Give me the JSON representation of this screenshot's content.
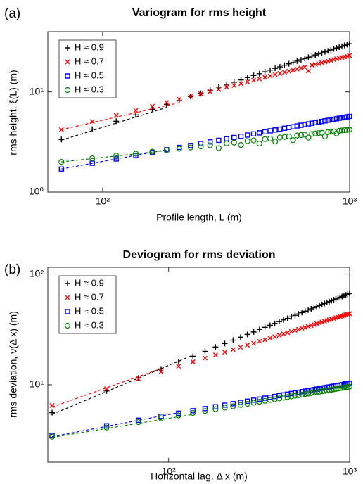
{
  "chart_data": [
    {
      "type": "scatter",
      "label": "(a)",
      "title": "Variogram for rms height",
      "xlabel": "Profile length, L (m)",
      "ylabel": "rms height, ξ(L) (m)",
      "xscale": "log",
      "yscale": "log",
      "xlim": [
        60,
        1000
      ],
      "ylim": [
        1,
        40
      ],
      "xticks": [
        {
          "value": 100,
          "label": "10²"
        },
        {
          "value": 1000,
          "label": "10³"
        }
      ],
      "yticks": [
        {
          "value": 1,
          "label": "10⁰"
        },
        {
          "value": 10,
          "label": "10¹"
        }
      ],
      "legend": "upper left",
      "x": [
        68.1,
        90.8,
        113.5,
        136.2,
        158.9,
        181.6,
        204.3,
        227,
        249.7,
        272.4,
        295.1,
        317.8,
        340.5,
        363.2,
        385.9,
        408.6,
        431.3,
        454,
        476.7,
        499.4,
        522.1,
        544.8,
        567.5,
        590.2,
        612.9,
        635.6,
        658.3,
        681,
        703.7,
        726.4,
        749.1,
        771.8,
        794.5,
        817.2,
        839.9,
        862.6,
        885.3,
        908,
        930.7,
        953.4,
        976.1,
        998.8
      ],
      "series": [
        {
          "name": "H ≈ 0.9",
          "color": "#000000",
          "marker": "plus",
          "fit_x": [
            68.1,
            181.6
          ],
          "fit_values": [
            3.3,
            7.0
          ],
          "values": [
            3.35,
            4.25,
            5.1,
            5.9,
            6.7,
            7.5,
            8.2,
            9.0,
            9.7,
            10.4,
            11.2,
            11.9,
            12.5,
            13.2,
            13.9,
            14.6,
            15.2,
            15.9,
            16.5,
            17.2,
            17.8,
            18.5,
            19.1,
            19.7,
            20.3,
            20.9,
            21.5,
            22.2,
            22.8,
            23.4,
            24.0,
            24.5,
            25.1,
            25.7,
            26.3,
            26.9,
            27.5,
            28.0,
            28.6,
            29.2,
            29.8,
            30.3
          ]
        },
        {
          "name": "H ≈ 0.7",
          "color": "#ff0000",
          "marker": "x",
          "fit_x": [
            68.1,
            204.3
          ],
          "fit_values": [
            4.2,
            7.8
          ],
          "values": [
            4.2,
            5.05,
            5.83,
            6.52,
            7.19,
            7.84,
            8.43,
            9.02,
            9.58,
            10.1,
            10.6,
            11.2,
            11.6,
            12.1,
            12.6,
            13.1,
            13.5,
            14.0,
            14.4,
            14.9,
            15.3,
            15.7,
            16.1,
            16.5,
            16.9,
            17.3,
            17.7,
            16.2,
            18.5,
            18.8,
            19.2,
            19.6,
            20.0,
            20.3,
            20.7,
            21.0,
            21.4,
            21.7,
            22.1,
            22.4,
            22.7,
            23.1
          ]
        },
        {
          "name": "H ≈ 0.5",
          "color": "#0000ff",
          "marker": "square",
          "fit_x": [
            68.1,
            181.6
          ],
          "fit_values": [
            1.7,
            2.65
          ],
          "values": [
            1.7,
            1.94,
            2.14,
            2.32,
            2.49,
            2.65,
            2.79,
            2.92,
            3.05,
            3.17,
            3.29,
            3.4,
            3.51,
            3.61,
            3.71,
            3.81,
            3.9,
            4.0,
            4.09,
            4.17,
            4.25,
            4.34,
            4.42,
            4.49,
            4.57,
            4.65,
            4.72,
            4.8,
            4.87,
            4.94,
            5.01,
            5.07,
            5.14,
            5.21,
            5.27,
            5.33,
            5.4,
            5.46,
            5.52,
            5.58,
            5.64,
            5.7
          ]
        },
        {
          "name": "H ≈ 0.3",
          "color": "#008000",
          "marker": "circle",
          "fit_x": [
            68.1,
            181.6
          ],
          "fit_values": [
            2.0,
            2.6
          ],
          "values": [
            2.0,
            2.17,
            2.31,
            2.42,
            2.53,
            2.63,
            2.71,
            2.79,
            2.86,
            2.93,
            2.75,
            3.06,
            3.12,
            2.95,
            3.23,
            3.28,
            3.05,
            3.38,
            3.43,
            3.2,
            3.51,
            3.55,
            3.59,
            3.3,
            3.67,
            3.71,
            3.74,
            3.5,
            3.81,
            3.85,
            3.88,
            3.91,
            3.6,
            3.97,
            4.0,
            4.03,
            3.85,
            4.09,
            4.12,
            4.15,
            4.17,
            4.2
          ]
        }
      ]
    },
    {
      "type": "scatter",
      "label": "(b)",
      "title": "Deviogram for rms deviation",
      "xlabel": "Horizontal lag, Δ x (m)",
      "ylabel": "rms deviation, ν(Δ x) (m)",
      "xscale": "log",
      "yscale": "log",
      "xlim": [
        21.5,
        1000
      ],
      "ylim": [
        2,
        115
      ],
      "xticks": [
        {
          "value": 100,
          "label": "10²"
        },
        {
          "value": 1000,
          "label": "10³"
        }
      ],
      "yticks": [
        {
          "value": 10,
          "label": "10¹"
        },
        {
          "value": 100,
          "label": "10²"
        }
      ],
      "legend": "upper left",
      "x": [
        22.7,
        45.4,
        68.1,
        90.8,
        113.5,
        136.2,
        158.9,
        181.6,
        204.3,
        227,
        249.7,
        272.4,
        295.1,
        317.8,
        340.5,
        363.2,
        385.9,
        408.6,
        431.3,
        454,
        476.7,
        499.4,
        522.1,
        544.8,
        567.5,
        590.2,
        612.9,
        635.6,
        658.3,
        681,
        703.7,
        726.4,
        749.1,
        771.8,
        794.5,
        817.2,
        839.9,
        862.6,
        885.3,
        908,
        930.7,
        953.4,
        976.1,
        998.8
      ],
      "series": [
        {
          "name": "H ≈ 0.9",
          "color": "#000000",
          "marker": "plus",
          "fit_x": [
            22.7,
            136.2
          ],
          "fit_values": [
            5.4,
            18.5
          ],
          "values": [
            5.6,
            8.8,
            11.5,
            13.9,
            16.1,
            18.1,
            20.0,
            21.9,
            23.6,
            25.3,
            26.9,
            28.5,
            30.0,
            31.6,
            33.0,
            34.4,
            35.8,
            37.2,
            38.5,
            39.8,
            41.1,
            42.4,
            43.6,
            44.9,
            46.1,
            47.3,
            48.5,
            49.6,
            50.8,
            52.0,
            53.1,
            54.2,
            55.3,
            56.4,
            57.5,
            58.6,
            59.6,
            60.7,
            61.7,
            62.7,
            63.8,
            64.8,
            65.7,
            66.8
          ]
        },
        {
          "name": "H ≈ 0.7",
          "color": "#ff0000",
          "marker": "x",
          "fit_x": [
            22.7,
            90.8
          ],
          "fit_values": [
            6.3,
            14.0
          ],
          "values": [
            6.5,
            9.2,
            11.3,
            13.1,
            14.7,
            16.1,
            17.4,
            18.6,
            19.7,
            20.8,
            21.8,
            22.8,
            23.7,
            24.7,
            25.5,
            26.4,
            27.2,
            28.0,
            28.8,
            29.5,
            30.3,
            31.0,
            31.7,
            32.4,
            33.0,
            33.7,
            34.3,
            35.0,
            35.6,
            36.2,
            36.8,
            37.4,
            38.0,
            38.6,
            39.1,
            39.7,
            40.3,
            40.8,
            41.3,
            41.9,
            42.4,
            42.9,
            43.4,
            43.9
          ]
        },
        {
          "name": "H ≈ 0.5",
          "color": "#0000ff",
          "marker": "square",
          "fit_x": [
            22.7,
            113.5
          ],
          "fit_values": [
            3.4,
            5.6
          ],
          "values": [
            3.5,
            4.27,
            4.79,
            5.19,
            5.54,
            5.83,
            6.1,
            6.33,
            6.55,
            6.75,
            6.93,
            7.11,
            7.27,
            7.42,
            7.57,
            7.71,
            7.84,
            7.98,
            8.1,
            8.22,
            8.34,
            8.45,
            8.55,
            8.66,
            8.76,
            8.86,
            8.95,
            9.05,
            9.14,
            9.22,
            9.32,
            9.4,
            9.49,
            9.56,
            9.64,
            9.72,
            9.79,
            9.87,
            9.94,
            10.0,
            10.1,
            10.2,
            10.2,
            10.3
          ]
        },
        {
          "name": "H ≈ 0.3",
          "color": "#008000",
          "marker": "circle",
          "fit_x": [
            22.7,
            136.2
          ],
          "fit_values": [
            3.35,
            5.4
          ],
          "values": [
            3.4,
            4.11,
            4.6,
            4.98,
            5.29,
            5.57,
            5.8,
            6.02,
            6.22,
            6.4,
            6.57,
            6.73,
            6.88,
            7.03,
            7.16,
            7.29,
            7.41,
            7.53,
            7.64,
            7.75,
            7.85,
            7.95,
            8.05,
            8.15,
            8.24,
            8.33,
            8.41,
            8.5,
            8.58,
            8.66,
            8.74,
            8.82,
            8.9,
            8.97,
            9.04,
            9.11,
            9.18,
            9.24,
            9.32,
            9.38,
            9.45,
            9.5,
            9.57,
            9.63
          ]
        }
      ]
    }
  ]
}
